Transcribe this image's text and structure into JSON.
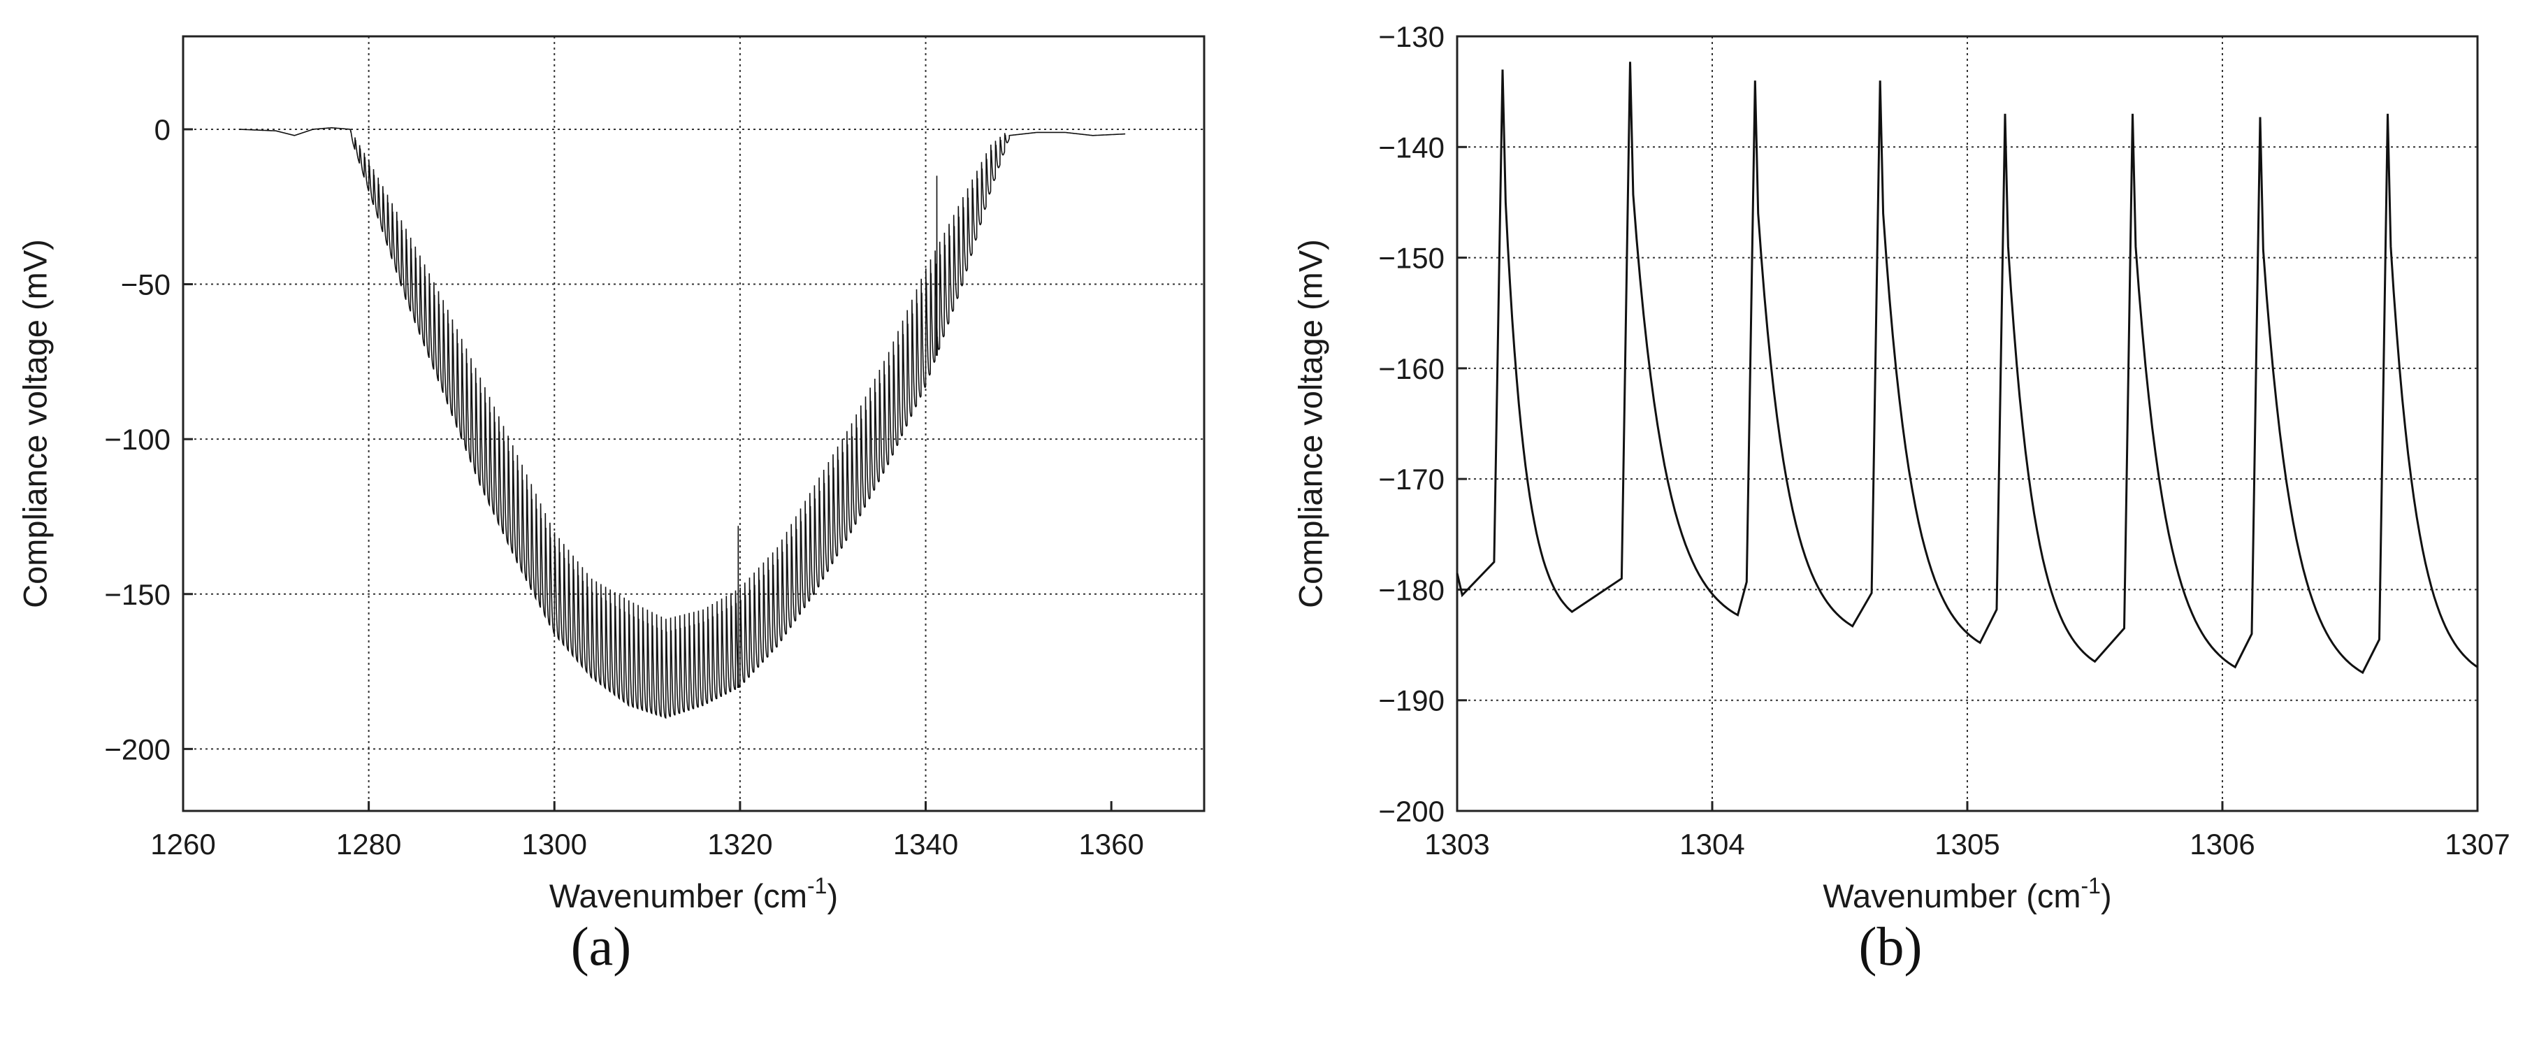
{
  "chart_data": [
    {
      "type": "line",
      "panel_label": "(a)",
      "xlabel": "Wavenumber (cm",
      "xlabel_sup": "-1",
      "xlabel_tail": ")",
      "ylabel": "Compliance voltage (mV)",
      "xlim": [
        1260,
        1370
      ],
      "ylim": [
        -220,
        30
      ],
      "x_ticks": [
        1260,
        1280,
        1300,
        1320,
        1340,
        1360
      ],
      "x_tick_labels": [
        "1260",
        "1280",
        "1300",
        "1320",
        "1340",
        "1360"
      ],
      "y_ticks": [
        0,
        -50,
        -100,
        -150,
        -200
      ],
      "y_tick_labels": [
        "0",
        "−50",
        "−100",
        "−150",
        "−200"
      ],
      "x_grid": [
        1280,
        1300,
        1320,
        1340
      ],
      "y_grid": [
        0,
        -50,
        -100,
        -150,
        -200
      ],
      "grid": true,
      "series": [
        {
          "x_range": [
            1266,
            1361.5
          ],
          "baseline": [
            [
              1266,
              0
            ],
            [
              1270,
              -0.5
            ],
            [
              1272,
              -2
            ],
            [
              1274,
              0
            ],
            [
              1276,
              0.5
            ],
            [
              1278,
              0
            ],
            [
              1280,
              -15
            ],
            [
              1284,
              -45
            ],
            [
              1288,
              -72
            ],
            [
              1292,
              -100
            ],
            [
              1296,
              -125
            ],
            [
              1300,
              -145
            ],
            [
              1304,
              -160
            ],
            [
              1308,
              -170
            ],
            [
              1312,
              -175
            ],
            [
              1316,
              -172
            ],
            [
              1320,
              -165
            ],
            [
              1324,
              -152
            ],
            [
              1328,
              -135
            ],
            [
              1332,
              -115
            ],
            [
              1336,
              -92
            ],
            [
              1340,
              -65
            ],
            [
              1344,
              -35
            ],
            [
              1347,
              -12
            ],
            [
              1349,
              -2
            ],
            [
              1352,
              -1
            ],
            [
              1355,
              -1
            ],
            [
              1358,
              -2
            ],
            [
              1361.5,
              -1.5
            ]
          ],
          "envelope_top": [
            [
              1278,
              0
            ],
            [
              1280,
              -10
            ],
            [
              1284,
              -32
            ],
            [
              1288,
              -55
            ],
            [
              1292,
              -80
            ],
            [
              1296,
              -105
            ],
            [
              1300,
              -130
            ],
            [
              1304,
              -145
            ],
            [
              1308,
              -152
            ],
            [
              1312,
              -158
            ],
            [
              1316,
              -155
            ],
            [
              1320,
              -148
            ],
            [
              1324,
              -135
            ],
            [
              1328,
              -115
            ],
            [
              1332,
              -95
            ],
            [
              1336,
              -72
            ],
            [
              1340,
              -45
            ],
            [
              1344,
              -22
            ],
            [
              1347,
              -5
            ],
            [
              1349,
              0
            ]
          ],
          "envelope_bottom": [
            [
              1278,
              -2
            ],
            [
              1280,
              -20
            ],
            [
              1284,
              -55
            ],
            [
              1288,
              -85
            ],
            [
              1292,
              -115
            ],
            [
              1296,
              -140
            ],
            [
              1300,
              -163
            ],
            [
              1304,
              -177
            ],
            [
              1308,
              -186
            ],
            [
              1312,
              -190
            ],
            [
              1316,
              -186
            ],
            [
              1320,
              -180
            ],
            [
              1324,
              -167
            ],
            [
              1328,
              -150
            ],
            [
              1332,
              -130
            ],
            [
              1336,
              -108
            ],
            [
              1340,
              -83
            ],
            [
              1344,
              -50
            ],
            [
              1347,
              -20
            ],
            [
              1349,
              -3
            ]
          ],
          "mode_spacing": 0.5,
          "spike_features": [
            [
              1319.8,
              -128
            ],
            [
              1341.2,
              -15
            ]
          ]
        }
      ]
    },
    {
      "type": "line",
      "panel_label": "(b)",
      "xlabel": "Wavenumber (cm",
      "xlabel_sup": "-1",
      "xlabel_tail": ")",
      "ylabel": "Compliance voltage (mV)",
      "xlim": [
        1303,
        1307
      ],
      "ylim": [
        -200,
        -130
      ],
      "x_ticks": [
        1303,
        1304,
        1305,
        1306,
        1307
      ],
      "x_tick_labels": [
        "1303",
        "1304",
        "1305",
        "1306",
        "1307"
      ],
      "y_ticks": [
        -130,
        -140,
        -150,
        -160,
        -170,
        -180,
        -190,
        -200
      ],
      "y_tick_labels": [
        "−130",
        "−140",
        "−150",
        "−160",
        "−170",
        "−180",
        "−190",
        "−200"
      ],
      "x_grid": [
        1304,
        1305,
        1306
      ],
      "y_grid": [
        -140,
        -150,
        -160,
        -170,
        -180,
        -190
      ],
      "grid": true,
      "series": [
        {
          "start": [
            1303.0,
            -178.5
          ],
          "peaks": [
            {
              "x": 1303.19,
              "y": -145.0,
              "min_x": 1303.02,
              "min_y": -180.5
            },
            {
              "x": 1303.69,
              "y": -144.3,
              "min_x": 1303.45,
              "min_y": -182.0
            },
            {
              "x": 1304.18,
              "y": -146.0,
              "min_x": 1304.1,
              "min_y": -182.3
            },
            {
              "x": 1304.67,
              "y": -146.0,
              "min_x": 1304.55,
              "min_y": -183.3
            },
            {
              "x": 1305.16,
              "y": -149.0,
              "min_x": 1305.05,
              "min_y": -184.8
            },
            {
              "x": 1305.66,
              "y": -149.0,
              "min_x": 1305.5,
              "min_y": -186.5
            },
            {
              "x": 1306.16,
              "y": -149.3,
              "min_x": 1306.05,
              "min_y": -187.0
            },
            {
              "x": 1306.66,
              "y": -149.0,
              "min_x": 1306.55,
              "min_y": -187.5
            }
          ],
          "end": [
            1307.0,
            -187.0
          ]
        }
      ]
    }
  ]
}
